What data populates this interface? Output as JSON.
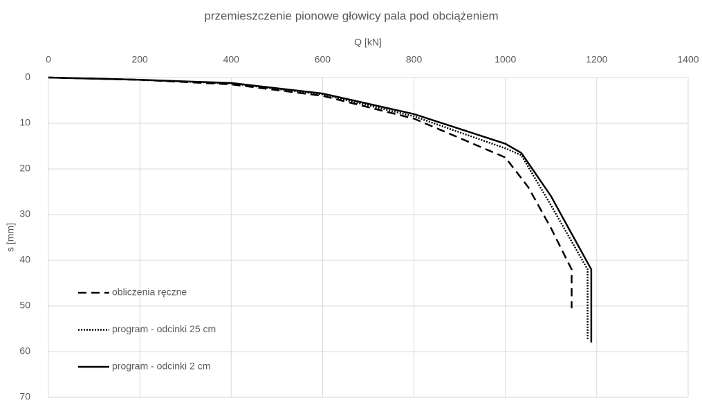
{
  "chart_data": {
    "type": "line",
    "title": "przemieszczenie pionowe głowicy pala pod obciążeniem",
    "x_label": "Q [kN]",
    "y_label": "s [mm]",
    "xlim": [
      0,
      1400
    ],
    "xticks": [
      0,
      200,
      400,
      600,
      800,
      1000,
      1200,
      1400
    ],
    "ylim": [
      0,
      70
    ],
    "yticks": [
      0,
      10,
      20,
      30,
      40,
      50,
      60,
      70
    ],
    "y_reversed": true,
    "x_axis_position": "top",
    "grid": true,
    "legend": "lower left",
    "series": [
      {
        "name": "obliczenia ręczne",
        "color": "#000000",
        "dash": "dashed",
        "x": [
          0,
          200,
          400,
          600,
          800,
          1000,
          1050,
          1100,
          1145,
          1145
        ],
        "values": [
          0,
          0.5,
          1.5,
          4,
          9,
          17.5,
          24,
          33,
          42,
          50.5
        ]
      },
      {
        "name": "program - odcinki 25 cm",
        "color": "#000000",
        "dash": "dotted",
        "x": [
          0,
          200,
          400,
          600,
          800,
          1000,
          1035,
          1100,
          1180,
          1180
        ],
        "values": [
          0,
          0.5,
          1.3,
          3.7,
          8.5,
          15.5,
          17,
          28,
          42,
          57.5
        ]
      },
      {
        "name": "program - odcinki 2 cm",
        "color": "#000000",
        "dash": "solid",
        "x": [
          0,
          200,
          400,
          600,
          800,
          1000,
          1035,
          1100,
          1188,
          1188
        ],
        "values": [
          0,
          0.5,
          1.2,
          3.5,
          8,
          14.5,
          16.5,
          26,
          42,
          58
        ]
      }
    ]
  }
}
